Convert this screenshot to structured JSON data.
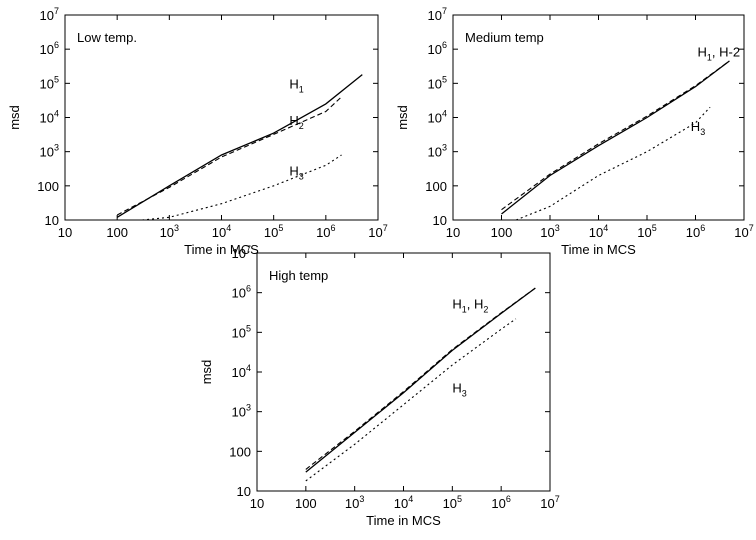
{
  "chart_data": [
    {
      "type": "line",
      "title": "Low temp.",
      "xlabel": "Time in MCS",
      "ylabel": "msd",
      "xscale": "log",
      "yscale": "log",
      "xlim": [
        10,
        10000000
      ],
      "ylim": [
        10,
        10000000
      ],
      "xticks": [
        "10",
        "100",
        "10^3",
        "10^4",
        "10^5",
        "10^6",
        "10^7"
      ],
      "yticks": [
        "10",
        "100",
        "10^3",
        "10^4",
        "10^5",
        "10^6",
        "10^7"
      ],
      "grid": false,
      "series": [
        {
          "name": "H_1",
          "style": "solid",
          "x": [
            100,
            1000,
            10000,
            100000,
            1000000,
            5000000
          ],
          "y": [
            12,
            100,
            800,
            3500,
            25000,
            180000
          ]
        },
        {
          "name": "H_2",
          "style": "dashed",
          "x": [
            100,
            1000,
            10000,
            100000,
            1000000,
            2000000
          ],
          "y": [
            14,
            90,
            700,
            3200,
            15000,
            40000
          ]
        },
        {
          "name": "H_3",
          "style": "dotted",
          "x": [
            300,
            1000,
            10000,
            100000,
            1000000,
            2000000
          ],
          "y": [
            10,
            12,
            30,
            100,
            400,
            800
          ]
        }
      ],
      "annotations": [
        {
          "base": "H",
          "sub": "1",
          "x": 200000,
          "y": 70000
        },
        {
          "base": "H",
          "sub": "2",
          "x": 200000,
          "y": 6000
        },
        {
          "base": "H",
          "sub": "3",
          "x": 200000,
          "y": 200
        }
      ]
    },
    {
      "type": "line",
      "title": "Medium temp",
      "xlabel": "Time in MCS",
      "ylabel": "msd",
      "xscale": "log",
      "yscale": "log",
      "xlim": [
        10,
        10000000
      ],
      "ylim": [
        10,
        10000000
      ],
      "xticks": [
        "10",
        "100",
        "10^3",
        "10^4",
        "10^5",
        "10^6",
        "10^7"
      ],
      "yticks": [
        "10",
        "100",
        "10^3",
        "10^4",
        "10^5",
        "10^6",
        "10^7"
      ],
      "grid": false,
      "series": [
        {
          "name": "H_1",
          "style": "solid",
          "x": [
            100,
            1000,
            10000,
            100000,
            1000000,
            5000000
          ],
          "y": [
            15,
            200,
            1500,
            10000,
            80000,
            450000
          ]
        },
        {
          "name": "H-2",
          "style": "dashed",
          "x": [
            100,
            1000,
            10000,
            100000,
            1000000,
            5000000
          ],
          "y": [
            20,
            220,
            1700,
            11000,
            85000,
            450000
          ]
        },
        {
          "name": "H_3",
          "style": "dotted",
          "x": [
            200,
            1000,
            10000,
            100000,
            1000000,
            2000000
          ],
          "y": [
            10,
            25,
            200,
            1000,
            7000,
            20000
          ]
        }
      ],
      "annotations": [
        {
          "base": "H",
          "sub": "1",
          "tail": ", H-2",
          "x": 1100000,
          "y": 600000
        },
        {
          "base": "H",
          "sub": "3",
          "x": 800000,
          "y": 4000
        }
      ]
    },
    {
      "type": "line",
      "title": "High temp",
      "xlabel": "Time in MCS",
      "ylabel": "msd",
      "xscale": "log",
      "yscale": "log",
      "xlim": [
        10,
        10000000
      ],
      "ylim": [
        10,
        10000000
      ],
      "xticks": [
        "10",
        "100",
        "10^3",
        "10^4",
        "10^5",
        "10^6",
        "10^7"
      ],
      "yticks": [
        "10",
        "100",
        "10^3",
        "10^4",
        "10^5",
        "10^6",
        "10^7"
      ],
      "grid": false,
      "series": [
        {
          "name": "H_1",
          "style": "solid",
          "x": [
            100,
            1000,
            10000,
            100000,
            1000000,
            5000000
          ],
          "y": [
            30,
            300,
            3000,
            35000,
            300000,
            1300000
          ]
        },
        {
          "name": "H_2",
          "style": "dashed",
          "x": [
            100,
            1000,
            10000,
            100000,
            1000000,
            5000000
          ],
          "y": [
            35,
            320,
            3200,
            37000,
            310000,
            1300000
          ]
        },
        {
          "name": "H_3",
          "style": "dotted",
          "x": [
            100,
            1000,
            10000,
            100000,
            1000000,
            2000000
          ],
          "y": [
            18,
            150,
            1500,
            15000,
            120000,
            220000
          ]
        }
      ],
      "annotations": [
        {
          "base": "H",
          "sub": "1",
          "tail": ", H",
          "tailsub": "2",
          "x": 100000,
          "y": 400000
        },
        {
          "base": "H",
          "sub": "3",
          "x": 100000,
          "y": 3000
        }
      ]
    }
  ]
}
